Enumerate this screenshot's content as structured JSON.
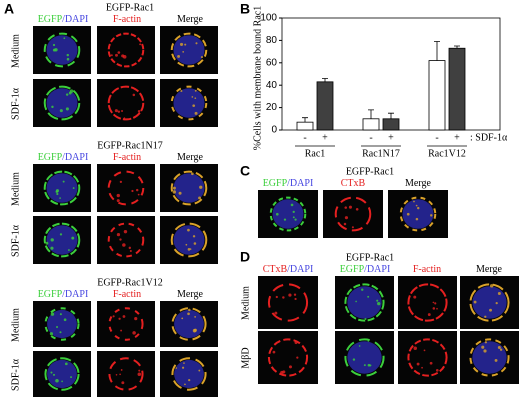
{
  "panel_a": {
    "label": "A",
    "blocks": [
      {
        "title": "EGFP-Rac1",
        "channels": [
          "EGFP",
          "/DAPI",
          "F-actin",
          "Merge"
        ],
        "rows": [
          "Medium",
          "SDF-1α"
        ]
      },
      {
        "title": "EGFP-Rac1N17",
        "channels": [
          "EGFP",
          "/DAPI",
          "F-actin",
          "Merge"
        ],
        "rows": [
          "Medium",
          "SDF-1α"
        ]
      },
      {
        "title": "EGFP-Rac1V12",
        "channels": [
          "EGFP",
          "/DAPI",
          "F-actin",
          "Merge"
        ],
        "rows": [
          "Medium",
          "SDF-1α"
        ]
      }
    ]
  },
  "chart_data": {
    "label": "B",
    "type": "bar",
    "y_label": "%Cells with membrane bound Rac1",
    "categories": [
      "Rac1",
      "Rac1N17",
      "Rac1V12"
    ],
    "series": [
      {
        "name": "-",
        "color": "#ffffff",
        "values": [
          7,
          10,
          62
        ],
        "errors": [
          4,
          8,
          17
        ]
      },
      {
        "name": "+",
        "color": "#404040",
        "values": [
          43,
          10,
          73
        ],
        "errors": [
          3,
          5,
          2
        ]
      }
    ],
    "treatment_label": ": SDF-1α",
    "ylim": [
      0,
      100
    ],
    "yticks": [
      0,
      20,
      40,
      60,
      80,
      100
    ]
  },
  "panel_c": {
    "label": "C",
    "title": "EGFP-Rac1",
    "channels": [
      "EGFP",
      "/DAPI",
      "CTxB",
      "Merge"
    ]
  },
  "panel_d": {
    "label": "D",
    "title": "EGFP-Rac1",
    "left_channels": [
      "CTxB",
      "/DAPI"
    ],
    "right_channels": [
      "EGFP",
      "/DAPI",
      "F-actin",
      "Merge"
    ],
    "rows": [
      "Medium",
      "MβD"
    ]
  }
}
